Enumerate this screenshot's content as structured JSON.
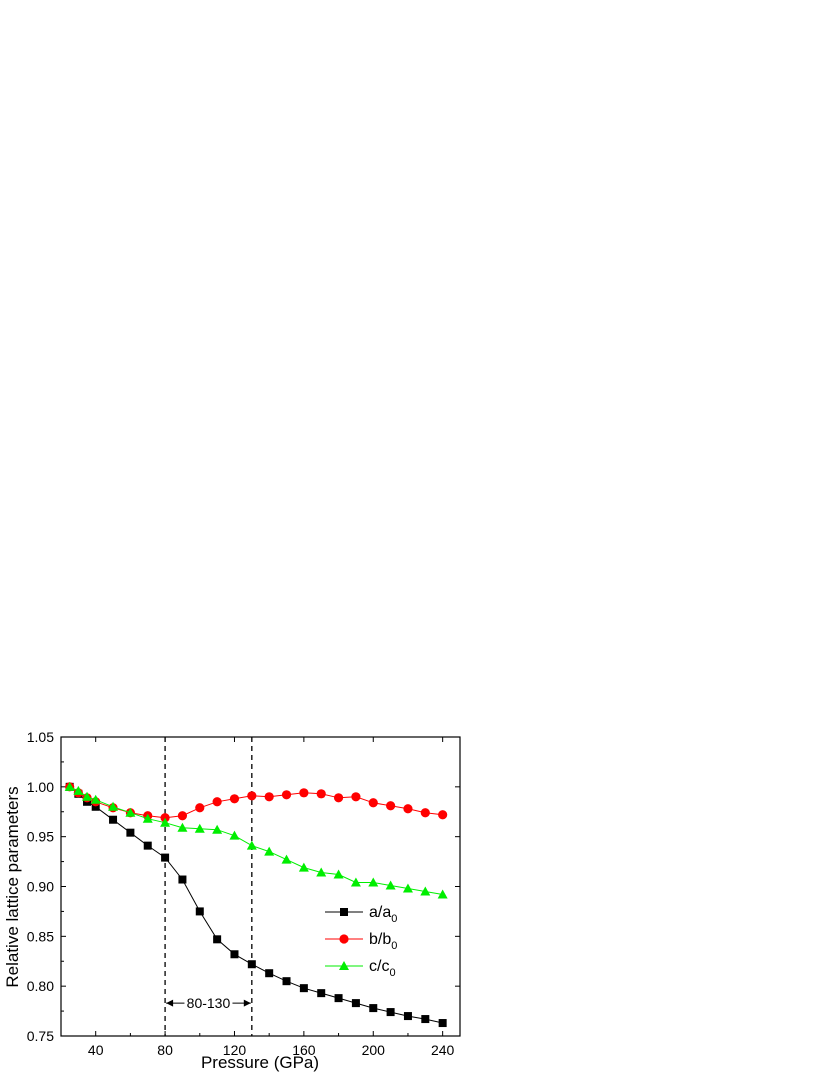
{
  "chart_data": {
    "type": "line",
    "title": "",
    "xlabel": "Pressure (GPa)",
    "ylabel": "Relative lattice parameters",
    "xlim": [
      20,
      250
    ],
    "ylim": [
      0.75,
      1.05
    ],
    "xticks": [
      40,
      80,
      120,
      160,
      200,
      240
    ],
    "xtick_labels": [
      "40",
      "80",
      "120",
      "160",
      "200",
      "240"
    ],
    "yticks": [
      0.75,
      0.8,
      0.85,
      0.9,
      0.95,
      1.0,
      1.05
    ],
    "ytick_labels": [
      "0.75",
      "0.80",
      "0.85",
      "0.90",
      "0.95",
      "1.00",
      "1.05"
    ],
    "grid": false,
    "legend_position": "right",
    "series": [
      {
        "name": "a/a0",
        "label_main": "a/a",
        "label_sub": "0",
        "color": "#000000",
        "marker": "square",
        "x": [
          25,
          30,
          35,
          40,
          50,
          60,
          70,
          80,
          90,
          100,
          110,
          120,
          130,
          140,
          150,
          160,
          170,
          180,
          190,
          200,
          210,
          220,
          230,
          240
        ],
        "y": [
          1.0,
          0.993,
          0.985,
          0.98,
          0.967,
          0.954,
          0.941,
          0.929,
          0.907,
          0.875,
          0.847,
          0.832,
          0.822,
          0.813,
          0.805,
          0.798,
          0.793,
          0.788,
          0.783,
          0.778,
          0.774,
          0.77,
          0.767,
          0.763
        ]
      },
      {
        "name": "b/b0",
        "label_main": "b/b",
        "label_sub": "0",
        "color": "#ff0000",
        "marker": "circle",
        "x": [
          25,
          30,
          35,
          40,
          50,
          60,
          70,
          80,
          90,
          100,
          110,
          120,
          130,
          140,
          150,
          160,
          170,
          180,
          190,
          200,
          210,
          220,
          230,
          240
        ],
        "y": [
          1.0,
          0.994,
          0.989,
          0.985,
          0.979,
          0.974,
          0.971,
          0.969,
          0.971,
          0.979,
          0.985,
          0.988,
          0.991,
          0.99,
          0.992,
          0.994,
          0.993,
          0.989,
          0.99,
          0.984,
          0.981,
          0.978,
          0.974,
          0.972
        ]
      },
      {
        "name": "c/c0",
        "label_main": "c/c",
        "label_sub": "0",
        "color": "#00ee00",
        "marker": "triangle",
        "x": [
          25,
          30,
          35,
          40,
          50,
          60,
          70,
          80,
          90,
          100,
          110,
          120,
          130,
          140,
          150,
          160,
          170,
          180,
          190,
          200,
          210,
          220,
          230,
          240
        ],
        "y": [
          1.0,
          0.996,
          0.99,
          0.987,
          0.98,
          0.974,
          0.968,
          0.964,
          0.959,
          0.958,
          0.957,
          0.951,
          0.941,
          0.935,
          0.927,
          0.919,
          0.914,
          0.912,
          0.904,
          0.904,
          0.901,
          0.898,
          0.895,
          0.892
        ]
      }
    ],
    "annotations": {
      "vlines_x": [
        80,
        130
      ],
      "range_text": "80-130",
      "range_y": 0.783,
      "range_from": 80,
      "range_to": 130
    }
  }
}
